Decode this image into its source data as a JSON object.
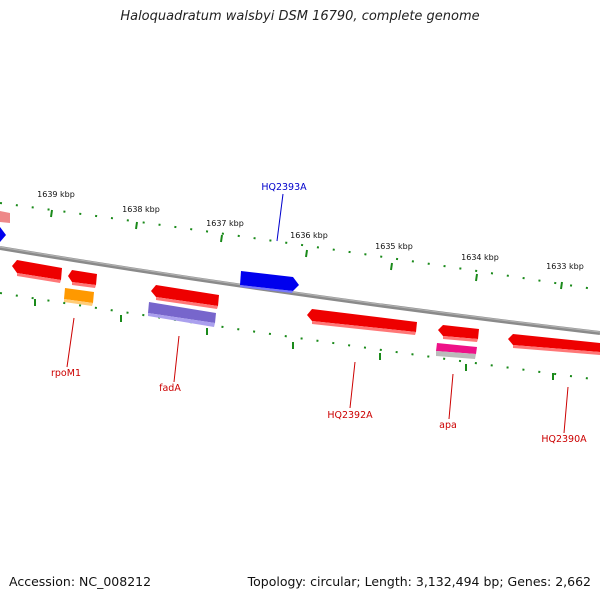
{
  "title": "Haloquadratum walsbyi DSM 16790, complete genome",
  "footer": {
    "accession": "Accession: NC_008212",
    "summary": "Topology: circular; Length: 3,132,494 bp; Genes: 2,662"
  },
  "colors": {
    "backbone": "#808080",
    "tick": "#1a8a1a",
    "forward_gene": "#0000ee",
    "reverse_gene": "#ee0000",
    "orange_gene": "#ff9900",
    "purple_gene": "#7766cc",
    "magenta_gene": "#ee1188",
    "gray_gene": "#bbbbbb",
    "pink_gene": "#ee8888",
    "label_forward": "#0000cc",
    "label_reverse": "#cc0000"
  },
  "scale": {
    "ticks": [
      "1639 kbp",
      "1638 kbp",
      "1637 kbp",
      "1636 kbp",
      "1635 kbp",
      "1634 kbp",
      "1633 kbp"
    ]
  },
  "labels": {
    "forward": [
      "HQ2393A"
    ],
    "reverse": [
      "rpoM1",
      "fadA",
      "HQ2392A",
      "apa",
      "HQ2390A"
    ]
  }
}
